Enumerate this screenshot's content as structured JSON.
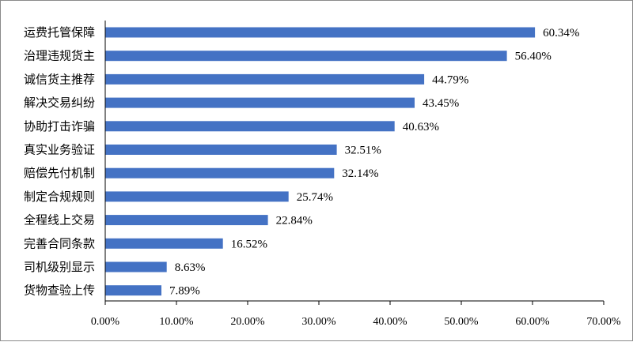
{
  "chart_data": {
    "type": "bar",
    "orientation": "horizontal",
    "categories": [
      "运费托管保障",
      "治理违规货主",
      "诚信货主推荐",
      "解决交易纠纷",
      "协助打击诈骗",
      "真实业务验证",
      "赔偿先付机制",
      "制定合规规则",
      "全程线上交易",
      "完善合同条款",
      "司机级别显示",
      "货物查验上传"
    ],
    "values": [
      60.34,
      56.4,
      44.79,
      43.45,
      40.63,
      32.51,
      32.14,
      25.74,
      22.84,
      16.52,
      8.63,
      7.89
    ],
    "value_labels": [
      "60.34%",
      "56.40%",
      "44.79%",
      "43.45%",
      "40.63%",
      "32.51%",
      "32.14%",
      "25.74%",
      "22.84%",
      "16.52%",
      "8.63%",
      "7.89%"
    ],
    "xlim": [
      0,
      70
    ],
    "xticks": [
      0,
      10,
      20,
      30,
      40,
      50,
      60,
      70
    ],
    "xtick_labels": [
      "0.00%",
      "10.00%",
      "20.00%",
      "30.00%",
      "40.00%",
      "50.00%",
      "60.00%",
      "70.00%"
    ],
    "bar_color": "#4472C4",
    "grid": false,
    "legend": "none",
    "title": "",
    "xlabel": "",
    "ylabel": ""
  }
}
